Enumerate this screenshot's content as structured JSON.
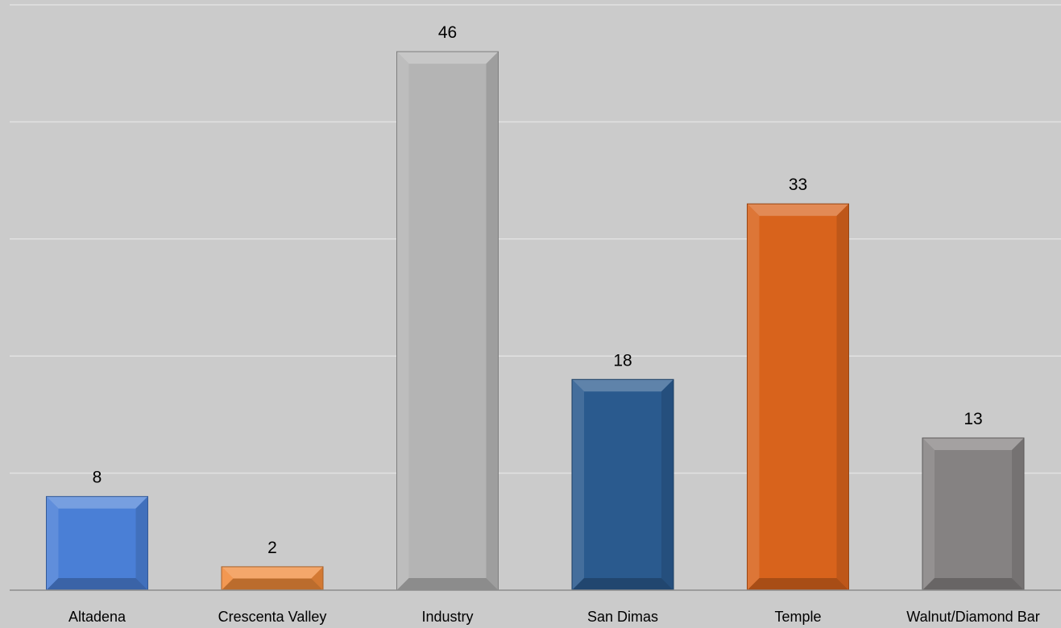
{
  "chart_data": {
    "type": "bar",
    "categories": [
      "Altadena",
      "Crescenta Valley",
      "Industry",
      "San Dimas",
      "Temple",
      "Walnut/Diamond Bar"
    ],
    "values": [
      8,
      2,
      46,
      18,
      33,
      13
    ],
    "bar_colors": [
      "#4a7fd6",
      "#f08a3a",
      "#b4b4b4",
      "#2a5a8e",
      "#d8631c",
      "#858282"
    ],
    "title": "",
    "xlabel": "",
    "ylabel": "",
    "ylim": [
      0,
      50
    ],
    "grid": true,
    "legend": "none",
    "data_labels": true
  },
  "colors": {
    "background": "#cbcbcb",
    "gridline": "#e2e2e2",
    "axis": "#8c8c8c"
  }
}
